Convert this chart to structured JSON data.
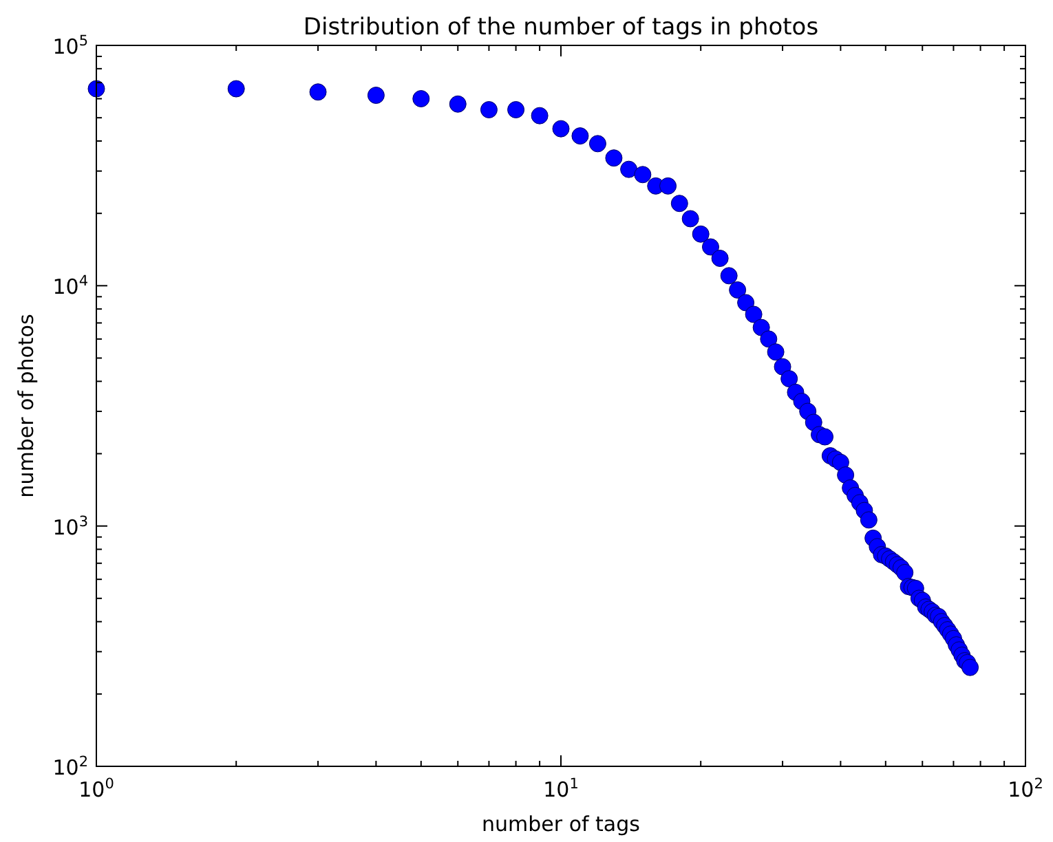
{
  "chart_data": {
    "type": "scatter",
    "title": "Distribution of the number of tags in photos",
    "xlabel": "number of tags",
    "ylabel": "number of photos",
    "log": "xy",
    "marker": "circle",
    "grid": false,
    "xlim": [
      1,
      100
    ],
    "ylim": [
      100,
      100000
    ],
    "xticks": [
      {
        "value": 1,
        "label": "10$^{0}$"
      },
      {
        "value": 2,
        "label": null
      },
      {
        "value": 3,
        "label": null
      },
      {
        "value": 4,
        "label": null
      },
      {
        "value": 5,
        "label": null
      },
      {
        "value": 6,
        "label": null
      },
      {
        "value": 7,
        "label": null
      },
      {
        "value": 8,
        "label": null
      },
      {
        "value": 9,
        "label": null
      },
      {
        "value": 10,
        "label": "10$^{1}$"
      },
      {
        "value": 20,
        "label": null
      },
      {
        "value": 30,
        "label": null
      },
      {
        "value": 40,
        "label": null
      },
      {
        "value": 50,
        "label": null
      },
      {
        "value": 60,
        "label": null
      },
      {
        "value": 70,
        "label": null
      },
      {
        "value": 80,
        "label": null
      },
      {
        "value": 90,
        "label": null
      },
      {
        "value": 100,
        "label": "10$^{2}$"
      }
    ],
    "yticks": [
      {
        "value": 100,
        "label": "10$^{2}$"
      },
      {
        "value": 200,
        "label": null
      },
      {
        "value": 300,
        "label": null
      },
      {
        "value": 400,
        "label": null
      },
      {
        "value": 500,
        "label": null
      },
      {
        "value": 600,
        "label": null
      },
      {
        "value": 700,
        "label": null
      },
      {
        "value": 800,
        "label": null
      },
      {
        "value": 900,
        "label": null
      },
      {
        "value": 1000,
        "label": "10$^{3}$"
      },
      {
        "value": 2000,
        "label": null
      },
      {
        "value": 3000,
        "label": null
      },
      {
        "value": 4000,
        "label": null
      },
      {
        "value": 5000,
        "label": null
      },
      {
        "value": 6000,
        "label": null
      },
      {
        "value": 7000,
        "label": null
      },
      {
        "value": 8000,
        "label": null
      },
      {
        "value": 9000,
        "label": null
      },
      {
        "value": 10000,
        "label": "10$^{4}$"
      },
      {
        "value": 20000,
        "label": null
      },
      {
        "value": 30000,
        "label": null
      },
      {
        "value": 40000,
        "label": null
      },
      {
        "value": 50000,
        "label": null
      },
      {
        "value": 60000,
        "label": null
      },
      {
        "value": 70000,
        "label": null
      },
      {
        "value": 80000,
        "label": null
      },
      {
        "value": 90000,
        "label": null
      },
      {
        "value": 100000,
        "label": "10$^{5}$"
      }
    ],
    "x": [
      1,
      2,
      3,
      4,
      5,
      6,
      7,
      8,
      9,
      10,
      11,
      12,
      13,
      14,
      15,
      16,
      17,
      18,
      19,
      20,
      21,
      22,
      23,
      24,
      25,
      26,
      27,
      28,
      29,
      30,
      31,
      32,
      33,
      34,
      35,
      36,
      37,
      38,
      39,
      40,
      41,
      42,
      43,
      44,
      45,
      46,
      47,
      48,
      49,
      50,
      51,
      52,
      53,
      54,
      55,
      56,
      57,
      58,
      59,
      60,
      61,
      62,
      63,
      64,
      65,
      66,
      67,
      68,
      69,
      70,
      71,
      72,
      73,
      74,
      75,
      76
    ],
    "series": [
      {
        "color": "#0000ff",
        "values": [
          66000,
          66000,
          64000,
          62000,
          60000,
          57000,
          54000,
          54000,
          51000,
          45000,
          42000,
          39000,
          34000,
          30500,
          29000,
          26000,
          26000,
          22000,
          19000,
          16400,
          14500,
          13000,
          11000,
          9600,
          8500,
          7600,
          6700,
          6000,
          5300,
          4600,
          4100,
          3600,
          3300,
          3000,
          2700,
          2400,
          2350,
          1960,
          1900,
          1840,
          1630,
          1440,
          1340,
          1250,
          1160,
          1060,
          890,
          820,
          760,
          750,
          730,
          710,
          690,
          670,
          640,
          560,
          555,
          550,
          500,
          490,
          460,
          450,
          440,
          425,
          420,
          400,
          385,
          370,
          355,
          340,
          320,
          305,
          290,
          275,
          270,
          258
        ]
      }
    ]
  }
}
